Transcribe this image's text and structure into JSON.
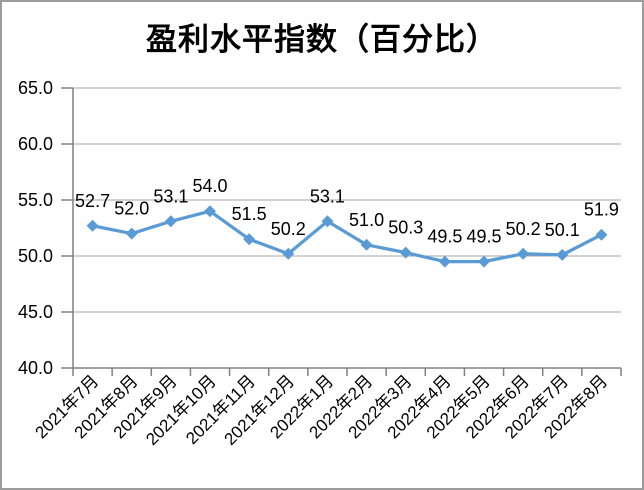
{
  "chart_data": {
    "type": "line",
    "title": "盈利水平指数（百分比）",
    "xlabel": "",
    "ylabel": "",
    "categories": [
      "2021年7月",
      "2021年8月",
      "2021年9月",
      "2021年10月",
      "2021年11月",
      "2021年12月",
      "2022年1月",
      "2022年2月",
      "2022年3月",
      "2022年4月",
      "2022年5月",
      "2022年6月",
      "2022年7月",
      "2022年8月"
    ],
    "values": [
      52.7,
      52.0,
      53.1,
      54.0,
      51.5,
      50.2,
      53.1,
      51.0,
      50.3,
      49.5,
      49.5,
      50.2,
      50.1,
      51.9
    ],
    "data_labels": [
      "52.7",
      "52.0",
      "53.1",
      "54.0",
      "51.5",
      "50.2",
      "53.1",
      "51.0",
      "50.3",
      "49.5",
      "49.5",
      "50.2",
      "50.1",
      "51.9"
    ],
    "y_tick_labels": [
      "65.0",
      "60.0",
      "55.0",
      "50.0",
      "45.0",
      "40.0"
    ],
    "ylim": [
      40.0,
      65.0
    ],
    "y_tick_step": 5.0,
    "grid": true,
    "legend": "none",
    "marker": "diamond",
    "series_color": "#5B9BD5",
    "gridline_color": "#A6A6A6",
    "axis_color": "#808080",
    "label_color": "#000000",
    "border_color": "#9C9C9C"
  }
}
